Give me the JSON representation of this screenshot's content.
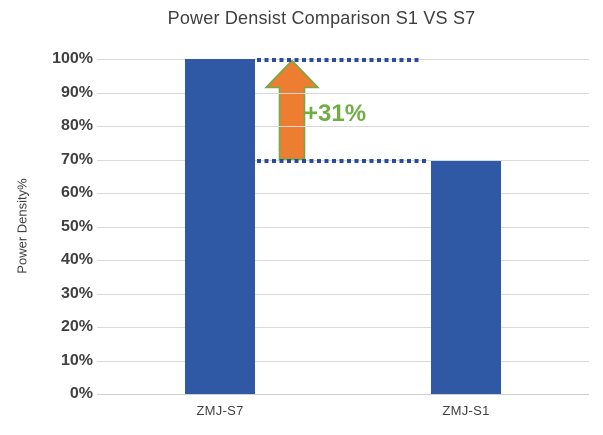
{
  "chart_data": {
    "type": "bar",
    "title": "Power Densist Comparison S1 VS S7",
    "ylabel": "Power Density%",
    "xlabel": "",
    "categories": [
      "ZMJ-S7",
      "ZMJ-S1"
    ],
    "values": [
      100,
      69.5
    ],
    "value_unit": "percent",
    "ylim": [
      0,
      100
    ],
    "yticks": [
      "0%",
      "10%",
      "20%",
      "30%",
      "40%",
      "50%",
      "60%",
      "70%",
      "80%",
      "90%",
      "100%"
    ],
    "grid": true,
    "legend": false,
    "annotation": {
      "label": "+31%",
      "from_value": 69.5,
      "to_value": 100,
      "reference_lines": [
        100,
        69.5
      ]
    },
    "colors": {
      "bar": "#2F58A5",
      "gridline": "#D9D9D9",
      "text": "#3F3F3F",
      "reference_line": "#2B4B9B",
      "arrow_fill": "#ED7D31",
      "arrow_outline": "#70AD47",
      "annotation_text": "#70AD47",
      "background": "#FFFFFF"
    }
  }
}
